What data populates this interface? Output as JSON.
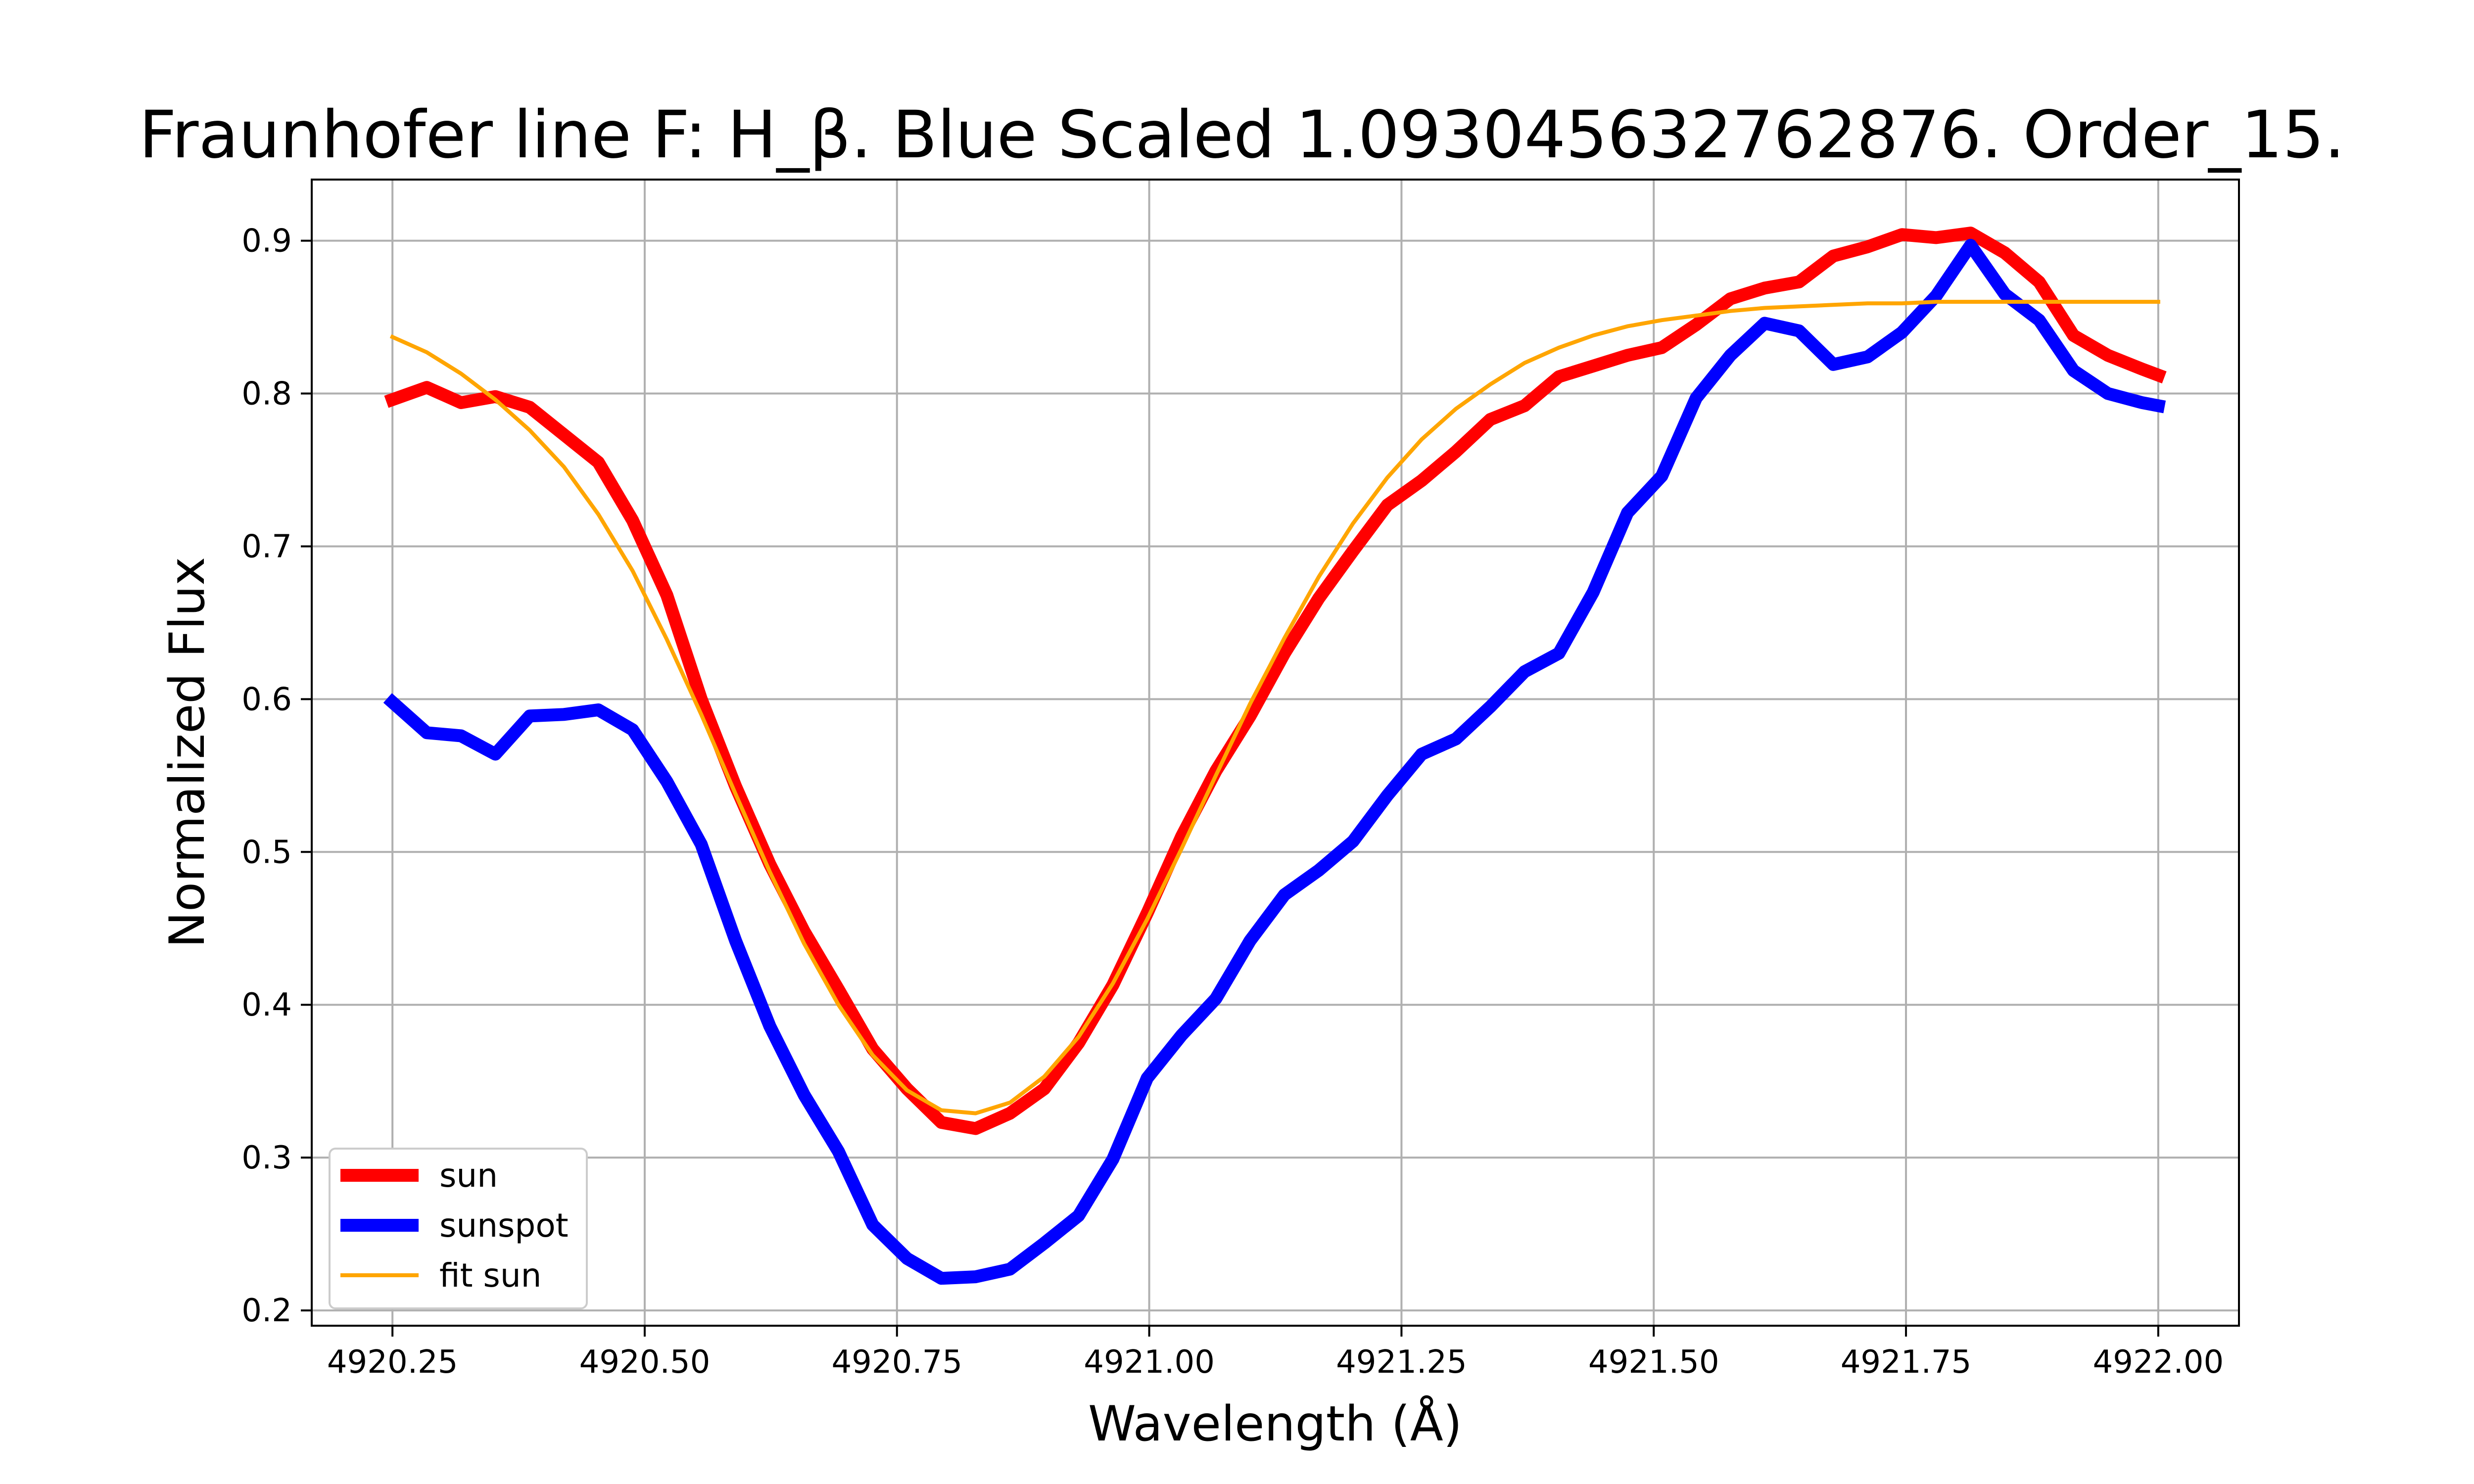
{
  "chart_data": {
    "type": "line",
    "title": "Fraunhofer line F: H_β. Blue Scaled 1.093045632762876. Order_15.",
    "xlabel": "Wavelength (Å)",
    "ylabel": "Normalized Flux",
    "xlim": [
      4920.17,
      4922.08
    ],
    "ylim": [
      0.19,
      0.94
    ],
    "xticks": [
      4920.25,
      4920.5,
      4920.75,
      4921.0,
      4921.25,
      4921.5,
      4921.75,
      4922.0
    ],
    "xtick_labels": [
      "4920.25",
      "4920.50",
      "4920.75",
      "4921.00",
      "4921.25",
      "4921.50",
      "4921.75",
      "4922.00"
    ],
    "yticks": [
      0.2,
      0.3,
      0.4,
      0.5,
      0.6,
      0.7,
      0.8,
      0.9
    ],
    "ytick_labels": [
      "0.2",
      "0.3",
      "0.4",
      "0.5",
      "0.6",
      "0.7",
      "0.8",
      "0.9"
    ],
    "grid": true,
    "legend_position": "lower-left",
    "x": [
      4920.25,
      4920.284,
      4920.318,
      4920.352,
      4920.386,
      4920.42,
      4920.454,
      4920.488,
      4920.522,
      4920.556,
      4920.59,
      4920.624,
      4920.658,
      4920.692,
      4920.726,
      4920.76,
      4920.794,
      4920.828,
      4920.862,
      4920.896,
      4920.93,
      4920.964,
      4920.998,
      4921.032,
      4921.066,
      4921.1,
      4921.134,
      4921.168,
      4921.202,
      4921.236,
      4921.27,
      4921.304,
      4921.338,
      4921.372,
      4921.406,
      4921.44,
      4921.474,
      4921.508,
      4921.542,
      4921.576,
      4921.61,
      4921.644,
      4921.678,
      4921.712,
      4921.746,
      4921.78,
      4921.814,
      4921.848,
      4921.882,
      4921.916,
      4921.95,
      4921.984,
      4922.0
    ],
    "series": [
      {
        "name": "sun",
        "color": "#ff0000",
        "width": 26,
        "values": [
          0.796,
          0.804,
          0.794,
          0.798,
          0.791,
          0.773,
          0.755,
          0.717,
          0.668,
          0.6,
          0.543,
          0.492,
          0.448,
          0.41,
          0.371,
          0.345,
          0.323,
          0.319,
          0.329,
          0.345,
          0.375,
          0.413,
          0.46,
          0.51,
          0.553,
          0.589,
          0.63,
          0.666,
          0.697,
          0.727,
          0.743,
          0.762,
          0.783,
          0.792,
          0.811,
          0.818,
          0.825,
          0.83,
          0.845,
          0.862,
          0.869,
          0.873,
          0.89,
          0.896,
          0.904,
          0.902,
          0.905,
          0.892,
          0.873,
          0.838,
          0.825,
          0.816,
          0.812
        ]
      },
      {
        "name": "sunspot",
        "color": "#0000ff",
        "width": 26,
        "values": [
          0.598,
          0.578,
          0.576,
          0.564,
          0.589,
          0.59,
          0.593,
          0.58,
          0.546,
          0.505,
          0.442,
          0.386,
          0.341,
          0.304,
          0.256,
          0.234,
          0.221,
          0.222,
          0.227,
          0.244,
          0.262,
          0.299,
          0.352,
          0.38,
          0.404,
          0.442,
          0.472,
          0.488,
          0.507,
          0.537,
          0.564,
          0.574,
          0.595,
          0.618,
          0.63,
          0.67,
          0.722,
          0.746,
          0.797,
          0.825,
          0.846,
          0.841,
          0.819,
          0.824,
          0.84,
          0.864,
          0.897,
          0.865,
          0.848,
          0.815,
          0.8,
          0.794,
          0.792
        ]
      },
      {
        "name": "fit sun",
        "color": "#ffa500",
        "width": 8,
        "values": [
          0.837,
          0.827,
          0.813,
          0.796,
          0.776,
          0.752,
          0.721,
          0.684,
          0.639,
          0.59,
          0.538,
          0.487,
          0.44,
          0.4,
          0.367,
          0.344,
          0.331,
          0.329,
          0.336,
          0.353,
          0.379,
          0.414,
          0.456,
          0.502,
          0.55,
          0.597,
          0.64,
          0.68,
          0.715,
          0.745,
          0.77,
          0.79,
          0.806,
          0.82,
          0.83,
          0.838,
          0.844,
          0.848,
          0.851,
          0.854,
          0.856,
          0.857,
          0.858,
          0.859,
          0.859,
          0.86,
          0.86,
          0.86,
          0.86,
          0.86,
          0.86,
          0.86,
          0.86
        ]
      }
    ]
  }
}
